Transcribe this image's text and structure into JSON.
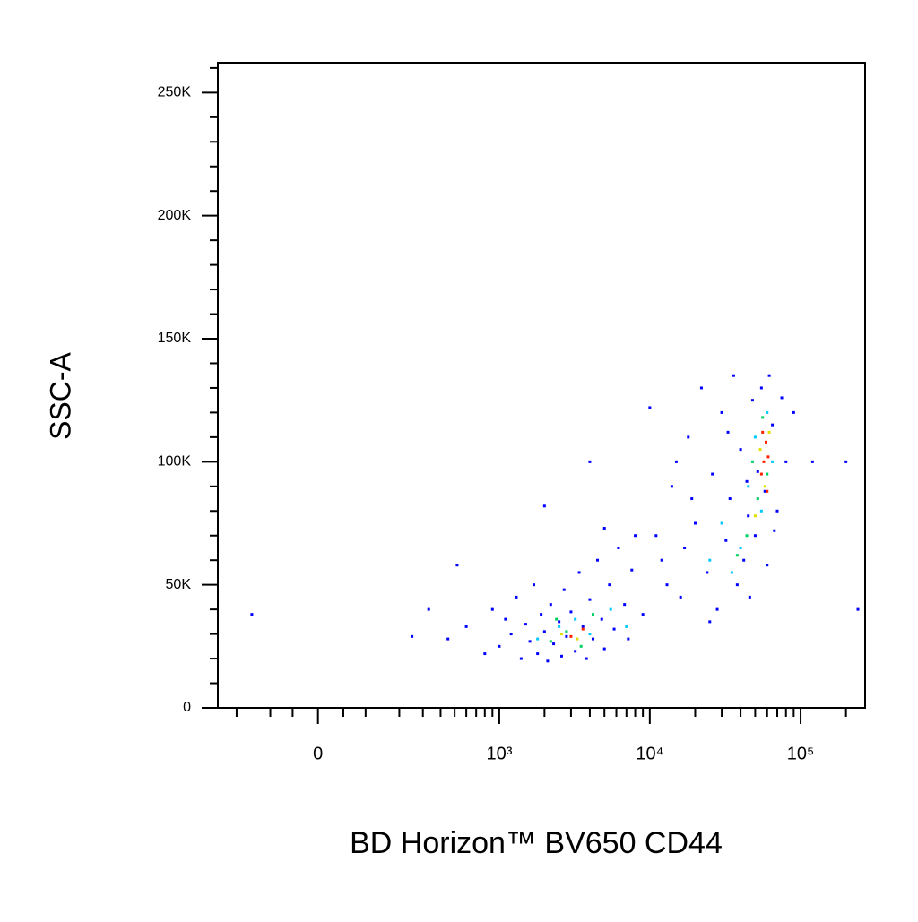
{
  "chart_data": {
    "type": "scatter",
    "xlabel": "BD Horizon™ BV650 CD44",
    "ylabel": "SSC-A",
    "xscale": {
      "type": "biexponential",
      "width": 126
    },
    "xlim": [
      -277,
      267800
    ],
    "ylim": [
      0,
      262144
    ],
    "xticks": [
      0,
      {
        "value": 1000,
        "label": "10³"
      },
      {
        "value": 10000,
        "label": "10⁴"
      },
      {
        "value": 100000,
        "label": "10⁵"
      }
    ],
    "xminor_ticks": [
      -200,
      -100,
      -50,
      50,
      100,
      200,
      300,
      400,
      500,
      600,
      700,
      800,
      900,
      2000,
      3000,
      4000,
      5000,
      6000,
      7000,
      8000,
      9000,
      20000,
      30000,
      40000,
      50000,
      60000,
      70000,
      80000,
      90000,
      200000
    ],
    "yticks": [
      0,
      {
        "value": 50000,
        "label": "50K"
      },
      {
        "value": 100000,
        "label": "100K"
      },
      {
        "value": 150000,
        "label": "150K"
      },
      {
        "value": 200000,
        "label": "200K"
      },
      {
        "value": 250000,
        "label": "250K"
      }
    ],
    "yminor_ticks": [
      10000,
      20000,
      30000,
      40000,
      60000,
      70000,
      80000,
      90000,
      110000,
      120000,
      130000,
      140000,
      160000,
      170000,
      180000,
      190000,
      210000,
      220000,
      230000,
      240000,
      260000
    ],
    "series": [
      {
        "color": "#0000ff",
        "x": [
          450,
          600,
          800,
          900,
          1000,
          1100,
          1200,
          1300,
          1400,
          1500,
          1600,
          1700,
          1800,
          1900,
          2000,
          2100,
          2200,
          2300,
          2500,
          2600,
          2700,
          2800,
          3000,
          3200,
          3400,
          3600,
          3800,
          4000,
          4200,
          4500,
          4800,
          5000,
          5400,
          5800,
          6200,
          6800,
          7200,
          7600,
          8000,
          9000,
          -150,
          250,
          330,
          520,
          2000,
          4000,
          5000,
          10000,
          12000,
          14000,
          16000,
          18000,
          20000,
          22000,
          24000,
          26000,
          28000,
          30000,
          32000,
          34000,
          36000,
          38000,
          40000,
          42000,
          44000,
          46000,
          48000,
          50000,
          55000,
          60000,
          65000,
          70000,
          75000,
          80000,
          90000,
          120000,
          200000,
          240000,
          11000,
          13000,
          15000,
          17000,
          19000,
          25000,
          33000,
          45000,
          52000,
          58000,
          62000,
          67000
        ],
        "y": [
          28000,
          33000,
          22000,
          40000,
          25000,
          36000,
          30000,
          45000,
          20000,
          34000,
          27000,
          50000,
          22000,
          38000,
          31000,
          19000,
          42000,
          26000,
          35000,
          21000,
          48000,
          29000,
          39000,
          23000,
          55000,
          33000,
          20000,
          44000,
          28000,
          60000,
          36000,
          24000,
          50000,
          32000,
          65000,
          42000,
          28000,
          56000,
          70000,
          38000,
          38000,
          29000,
          40000,
          58000,
          82000,
          100000,
          73000,
          122000,
          60000,
          90000,
          45000,
          110000,
          75000,
          130000,
          55000,
          95000,
          40000,
          120000,
          68000,
          85000,
          135000,
          50000,
          105000,
          60000,
          92000,
          45000,
          125000,
          70000,
          130000,
          58000,
          115000,
          80000,
          126000,
          100000,
          120000,
          100000,
          100000,
          40000,
          70000,
          50000,
          100000,
          65000,
          85000,
          35000,
          112000,
          78000,
          96000,
          88000,
          135000,
          72000
        ]
      },
      {
        "color": "#00c8ff",
        "x": [
          1800,
          2500,
          3200,
          4000,
          5500,
          7000,
          30000,
          40000,
          45000,
          50000,
          55000,
          60000,
          25000,
          35000,
          65000
        ],
        "y": [
          28000,
          33000,
          36000,
          30000,
          40000,
          33000,
          75000,
          65000,
          90000,
          110000,
          80000,
          120000,
          60000,
          55000,
          100000
        ]
      },
      {
        "color": "#00d060",
        "x": [
          2200,
          2800,
          3500,
          4200,
          2400,
          48000,
          52000,
          56000,
          60000,
          44000,
          38000
        ],
        "y": [
          27000,
          31000,
          25000,
          38000,
          36000,
          100000,
          85000,
          118000,
          95000,
          70000,
          62000
        ]
      },
      {
        "color": "#e0e000",
        "x": [
          2600,
          3300,
          54000,
          58000,
          62000,
          50000
        ],
        "y": [
          30000,
          28000,
          105000,
          90000,
          112000,
          78000
        ]
      },
      {
        "color": "#ff2000",
        "x": [
          3000,
          3600,
          55000,
          57000,
          59000,
          60000,
          56000,
          61000
        ],
        "y": [
          29000,
          32000,
          95000,
          100000,
          108000,
          88000,
          112000,
          102000
        ]
      }
    ]
  }
}
